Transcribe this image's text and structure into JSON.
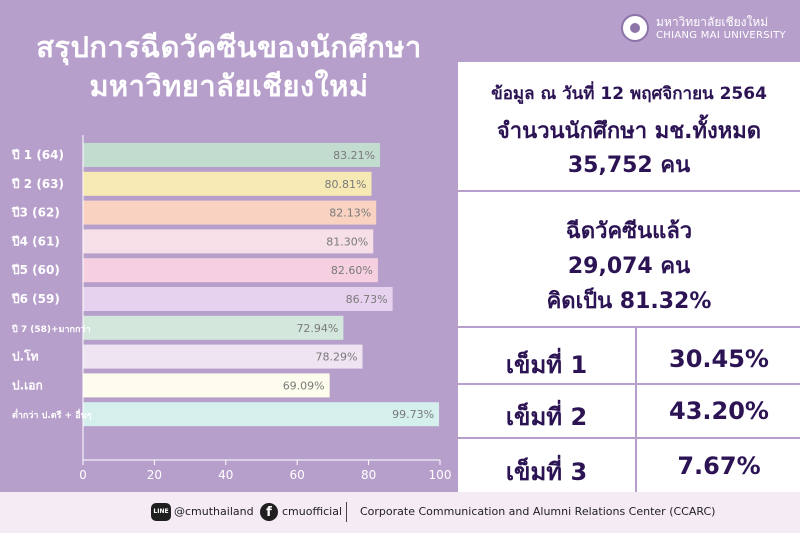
{
  "title_line1": "สรุปการฉีดวัคซีนของนักศึกษา",
  "title_line2": "มหาวิทยาลัยเชียงใหม่",
  "logo": {
    "thai": "มหาวิทยาลัยเชียงใหม่",
    "english": "CHIANG MAI UNIVERSITY"
  },
  "info": {
    "date": "ข้อมูล ณ วันที่  12 พฤศจิกายน 2564",
    "total_label": "จำนวนนักศึกษา มช.ทั้งหมด",
    "total_value": "35,752  คน",
    "vaccinated_label": "ฉีดวัคซีนแล้ว",
    "vaccinated_value": "29,074 คน",
    "vaccinated_pct": "คิดเป็น   81.32%"
  },
  "doses": [
    {
      "label": "เข็มที่ 1",
      "value": "30.45%"
    },
    {
      "label": "เข็มที่ 2",
      "value": "43.20%"
    },
    {
      "label": "เข็มที่ 3",
      "value": "7.67%"
    }
  ],
  "footer": {
    "line_icon_text": "LINE",
    "line_handle": "@cmuthailand",
    "fb_icon_text": "f",
    "fb_handle": "cmuofficial",
    "org": "Corporate Communication and Alumni Relations Center  (CCARC)"
  },
  "chart_data": {
    "type": "bar",
    "orientation": "horizontal",
    "categories": [
      "ปี 1 (64)",
      "ปี 2 (63)",
      "ปี3 (62)",
      "ปี4 (61)",
      "ปี5 (60)",
      "ปี6 (59)",
      "ปี 7 (58)+มากกว่า",
      "ป.โท",
      "ป.เอก",
      "ต่ำกว่า ป.ตรี + อื่นๆ"
    ],
    "values": [
      83.21,
      80.81,
      82.13,
      81.3,
      82.6,
      86.73,
      72.94,
      78.29,
      69.09,
      99.73
    ],
    "value_labels": [
      "83.21%",
      "80.81%",
      "82.13%",
      "81.30%",
      "82.60%",
      "86.73%",
      "72.94%",
      "78.29%",
      "69.09%",
      "99.73%"
    ],
    "colors": [
      "#c2dccf",
      "#f7e9b4",
      "#f9d2c1",
      "#f6dfe7",
      "#f6cfe0",
      "#e6d2ee",
      "#d3e7dc",
      "#efe4f2",
      "#fefcec",
      "#d5efec"
    ],
    "xlim": [
      0,
      100
    ],
    "xticks": [
      0,
      20,
      40,
      60,
      80,
      100
    ],
    "xlabel": "",
    "ylabel": "",
    "grid": false,
    "legend": "none"
  }
}
